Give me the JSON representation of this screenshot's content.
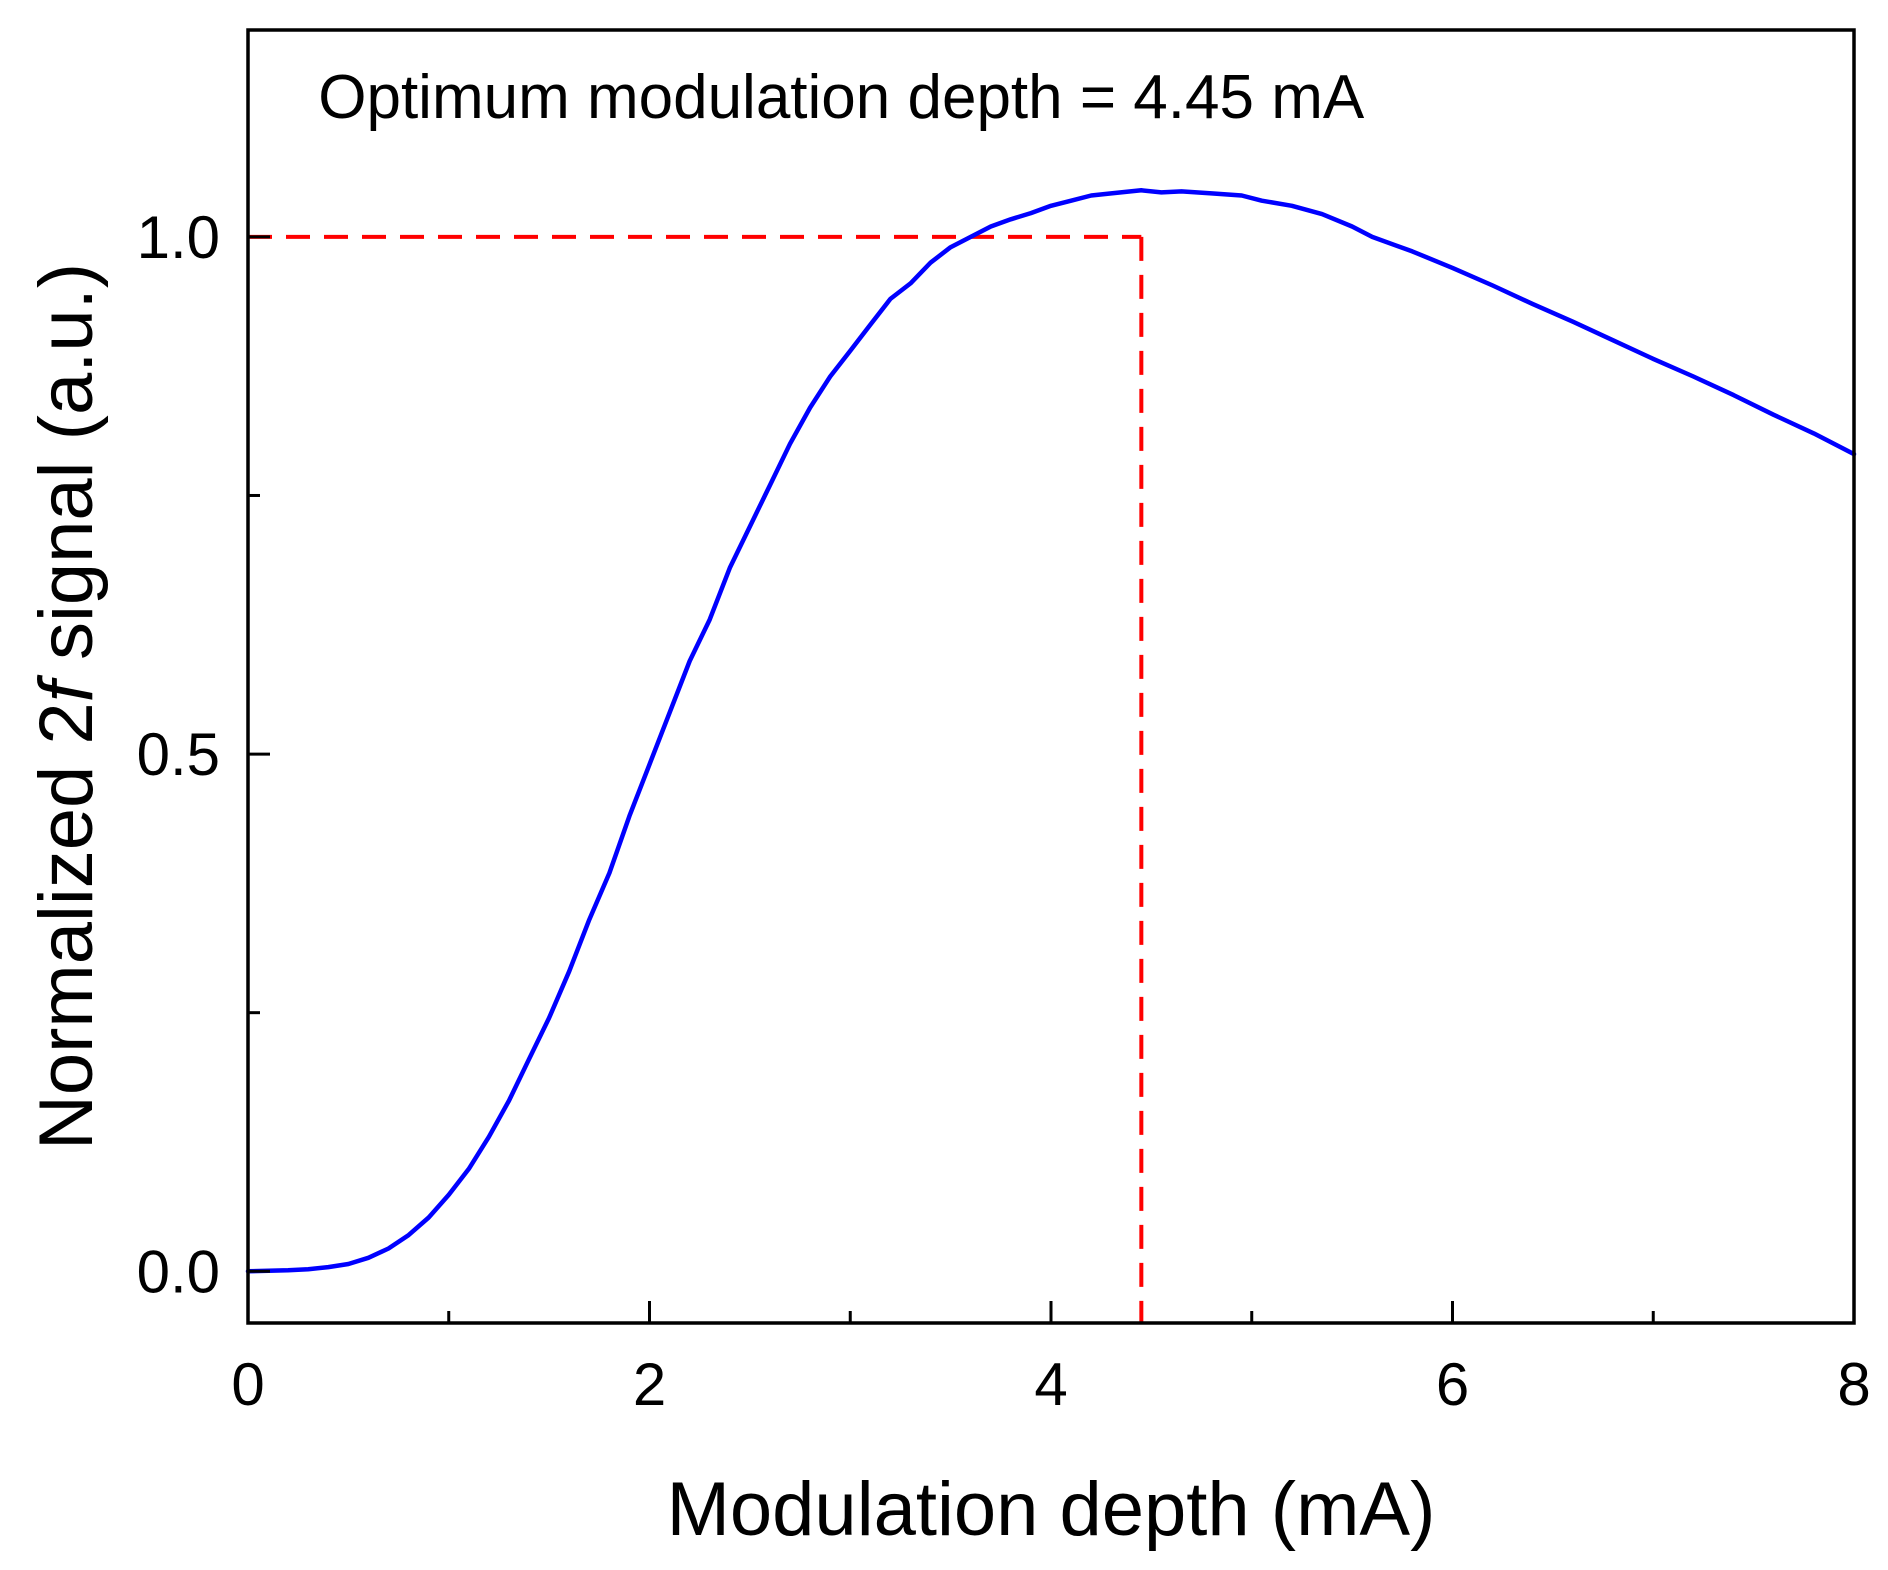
{
  "chart_data": {
    "type": "line",
    "title": "",
    "xlabel": "Modulation depth (mA)",
    "ylabel_parts": [
      "Normalized ",
      "2",
      "f",
      " signal (a.u.)"
    ],
    "xlim": [
      0,
      8
    ],
    "ylim": [
      -0.05,
      1.2
    ],
    "x_ticks_major": [
      0,
      2,
      4,
      6,
      8
    ],
    "x_ticks_minor": [
      1,
      3,
      5,
      7
    ],
    "x_tick_labels": [
      "0",
      "2",
      "4",
      "6",
      "8"
    ],
    "y_ticks_major": [
      0.0,
      0.5,
      1.0
    ],
    "y_ticks_minor": [
      0.25,
      0.75
    ],
    "y_tick_labels": [
      "0.0",
      "0.5",
      "1.0"
    ],
    "grid": false,
    "series": [
      {
        "name": "Normalized 2f signal",
        "color": "#0000ff",
        "x": [
          0,
          0.2,
          0.3,
          0.4,
          0.5,
          0.6,
          0.7,
          0.8,
          0.9,
          1.0,
          1.1,
          1.2,
          1.3,
          1.4,
          1.5,
          1.6,
          1.7,
          1.8,
          1.9,
          2.0,
          2.1,
          2.2,
          2.3,
          2.4,
          2.5,
          2.6,
          2.7,
          2.8,
          2.9,
          3.0,
          3.1,
          3.2,
          3.3,
          3.4,
          3.5,
          3.6,
          3.7,
          3.8,
          3.9,
          4.0,
          4.1,
          4.2,
          4.3,
          4.45,
          4.55,
          4.65,
          4.8,
          4.95,
          5.05,
          5.2,
          5.35,
          5.5,
          5.6,
          5.8,
          6.0,
          6.2,
          6.4,
          6.6,
          6.8,
          7.0,
          7.2,
          7.4,
          7.6,
          7.8,
          8.0
        ],
        "y": [
          0.0,
          0.001,
          0.002,
          0.004,
          0.007,
          0.013,
          0.022,
          0.035,
          0.052,
          0.074,
          0.099,
          0.13,
          0.165,
          0.205,
          0.245,
          0.29,
          0.34,
          0.385,
          0.44,
          0.49,
          0.54,
          0.59,
          0.63,
          0.68,
          0.72,
          0.76,
          0.8,
          0.835,
          0.865,
          0.89,
          0.915,
          0.94,
          0.955,
          0.975,
          0.99,
          1.0,
          1.01,
          1.017,
          1.023,
          1.03,
          1.035,
          1.04,
          1.042,
          1.045,
          1.043,
          1.044,
          1.042,
          1.04,
          1.035,
          1.03,
          1.022,
          1.01,
          1.0,
          0.986,
          0.97,
          0.953,
          0.935,
          0.918,
          0.9,
          0.882,
          0.865,
          0.847,
          0.828,
          0.81,
          0.79
        ]
      }
    ],
    "reference_lines": [
      {
        "name": "optimum-horizontal",
        "orientation": "horizontal",
        "value": 1.0,
        "from": 0,
        "to": 4.45,
        "color": "#ff0000",
        "style": "dashed"
      },
      {
        "name": "optimum-vertical",
        "orientation": "vertical",
        "value": 4.45,
        "from": -0.05,
        "to": 1.0,
        "color": "#ff0000",
        "style": "dashed"
      }
    ],
    "annotations": [
      {
        "text": "Optimum modulation depth = 4.45 mA",
        "x": 0.35,
        "y": 1.115
      }
    ]
  }
}
